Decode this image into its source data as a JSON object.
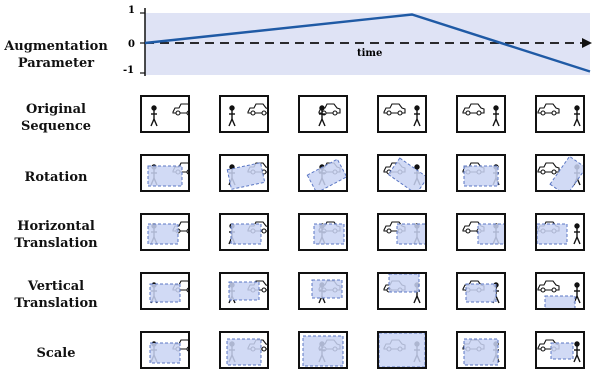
{
  "row_labels": {
    "param_line1": "Augmentation",
    "param_line2": "Parameter",
    "original_line1": "Original",
    "original_line2": "Sequence",
    "rotation": "Rotation",
    "htrans_line1": "Horizontal",
    "htrans_line2": "Translation",
    "vtrans_line1": "Vertical",
    "vtrans_line2": "Translation",
    "scale": "Scale"
  },
  "chart_data": {
    "type": "line",
    "xlabel": "time",
    "ylabel": "",
    "yticks": [
      "1",
      "0",
      "-1"
    ],
    "ylim": [
      -1,
      1
    ],
    "x": [
      0,
      0.6,
      1.0
    ],
    "y": [
      0,
      0.95,
      -0.95
    ]
  },
  "colors": {
    "chart_band": "#dfe3f5",
    "line": "#1f5aa5",
    "overlay_fill": "#c9d4f3",
    "overlay_stroke": "#5b77c4"
  },
  "icons": [
    "person-icon",
    "car-icon"
  ]
}
